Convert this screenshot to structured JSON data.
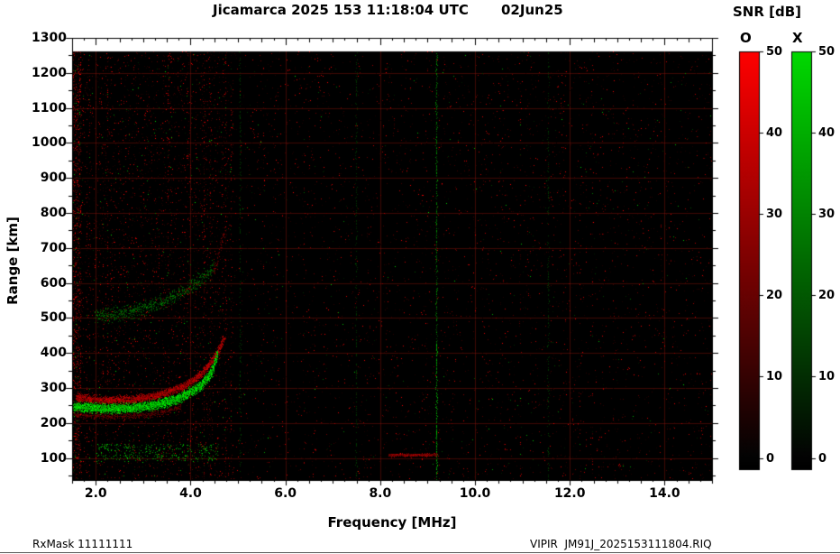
{
  "title": {
    "main": "Jicamarca 2025 153 11:18:04 UTC",
    "date": "02Jun25"
  },
  "axes": {
    "x": {
      "label": "Frequency [MHz]",
      "min": 1.5,
      "max": 15.0,
      "ticks": [
        2.0,
        4.0,
        6.0,
        8.0,
        10.0,
        12.0,
        14.0
      ]
    },
    "y": {
      "label": "Range [km]",
      "min": 36,
      "max": 1300,
      "ticks": [
        100,
        200,
        300,
        400,
        500,
        600,
        700,
        800,
        900,
        1000,
        1100,
        1200,
        1300
      ]
    }
  },
  "colorbars": {
    "title": "SNR [dB]",
    "bars": [
      {
        "name": "O",
        "color": "#ff0000",
        "min": 0,
        "max": 50,
        "ticks": [
          0,
          10,
          20,
          30,
          40,
          50
        ]
      },
      {
        "name": "X",
        "color": "#00d900",
        "min": 0,
        "max": 50,
        "ticks": [
          0,
          10,
          20,
          30,
          40,
          50
        ]
      }
    ]
  },
  "footer": {
    "left": "RxMask 11111111",
    "right": "VIPIR  JM91J_2025153111804.RIQ"
  },
  "chart_data": {
    "type": "heatmap",
    "subtype": "ionogram",
    "title": "Jicamarca 2025 153 11:18:04 UTC 02Jun25",
    "xlabel": "Frequency [MHz]",
    "ylabel": "Range [km]",
    "xlim": [
      1.5,
      15.0
    ],
    "ylim": [
      36,
      1300
    ],
    "grid": true,
    "snr_colorbar": {
      "label": "SNR [dB]",
      "range_db": [
        0,
        50
      ],
      "O_mode_color": "red",
      "X_mode_color": "green"
    },
    "traces": [
      {
        "name": "F-region O-mode",
        "mode": "O",
        "color": "red",
        "thickness_km": 20,
        "intensity": 0.75,
        "points": [
          [
            1.6,
            272
          ],
          [
            2.2,
            264
          ],
          [
            2.8,
            267
          ],
          [
            3.3,
            278
          ],
          [
            3.8,
            300
          ],
          [
            4.2,
            335
          ],
          [
            4.45,
            375
          ],
          [
            4.6,
            408
          ],
          [
            4.7,
            438
          ]
        ]
      },
      {
        "name": "F-region X-mode",
        "mode": "X",
        "color": "green",
        "thickness_km": 26,
        "intensity": 1.0,
        "points": [
          [
            1.55,
            246
          ],
          [
            2.2,
            240
          ],
          [
            2.8,
            243
          ],
          [
            3.3,
            252
          ],
          [
            3.8,
            272
          ],
          [
            4.2,
            303
          ],
          [
            4.45,
            344
          ],
          [
            4.56,
            392
          ]
        ]
      },
      {
        "name": "F-region underside fringe",
        "mode": "O",
        "color": "red",
        "thickness_km": 16,
        "intensity": 0.22,
        "points": [
          [
            1.55,
            222
          ],
          [
            2.5,
            218
          ],
          [
            3.2,
            224
          ],
          [
            3.8,
            245
          ]
        ]
      },
      {
        "name": "second-hop X-mode scatter",
        "mode": "X",
        "color": "green",
        "thickness_km": 42,
        "intensity": 0.3,
        "points": [
          [
            2.0,
            505
          ],
          [
            2.6,
            515
          ],
          [
            3.1,
            530
          ],
          [
            3.6,
            555
          ],
          [
            4.0,
            588
          ],
          [
            4.3,
            618
          ],
          [
            4.5,
            648
          ]
        ]
      },
      {
        "name": "second-hop O-mode cusp",
        "mode": "O",
        "color": "red",
        "thickness_km": 30,
        "intensity": 0.35,
        "points": [
          [
            4.5,
            630
          ],
          [
            4.62,
            690
          ],
          [
            4.7,
            740
          ]
        ]
      },
      {
        "name": "E-region echo",
        "mode": "O",
        "color": "red",
        "thickness_km": 7,
        "intensity": 0.55,
        "points": [
          [
            8.2,
            108
          ],
          [
            9.2,
            108
          ]
        ]
      }
    ],
    "interference_lines": [
      {
        "freq": 9.2,
        "color": "green",
        "intensity": 1.0
      },
      {
        "freq": 5.05,
        "color": "green",
        "intensity": 0.22
      },
      {
        "freq": 7.5,
        "color": "green",
        "intensity": 0.15
      },
      {
        "freq": 11.55,
        "color": "green",
        "intensity": 0.2
      }
    ],
    "noise": {
      "seed": 11,
      "description": "black background with red speckle noise columns, denser between 1.5 and 4.9 MHz, sparse green speckles mixed in, dense red band at left edge, faint green speckle cluster near 90-140 km between 2 and 4.6 MHz",
      "red_speckle_base_density": 0.022,
      "green_speckle_fraction": 0.07,
      "dense_band_mhz": [
        1.5,
        4.9
      ],
      "left_edge_density": 0.32,
      "low_alt_green_dots": 350
    }
  }
}
